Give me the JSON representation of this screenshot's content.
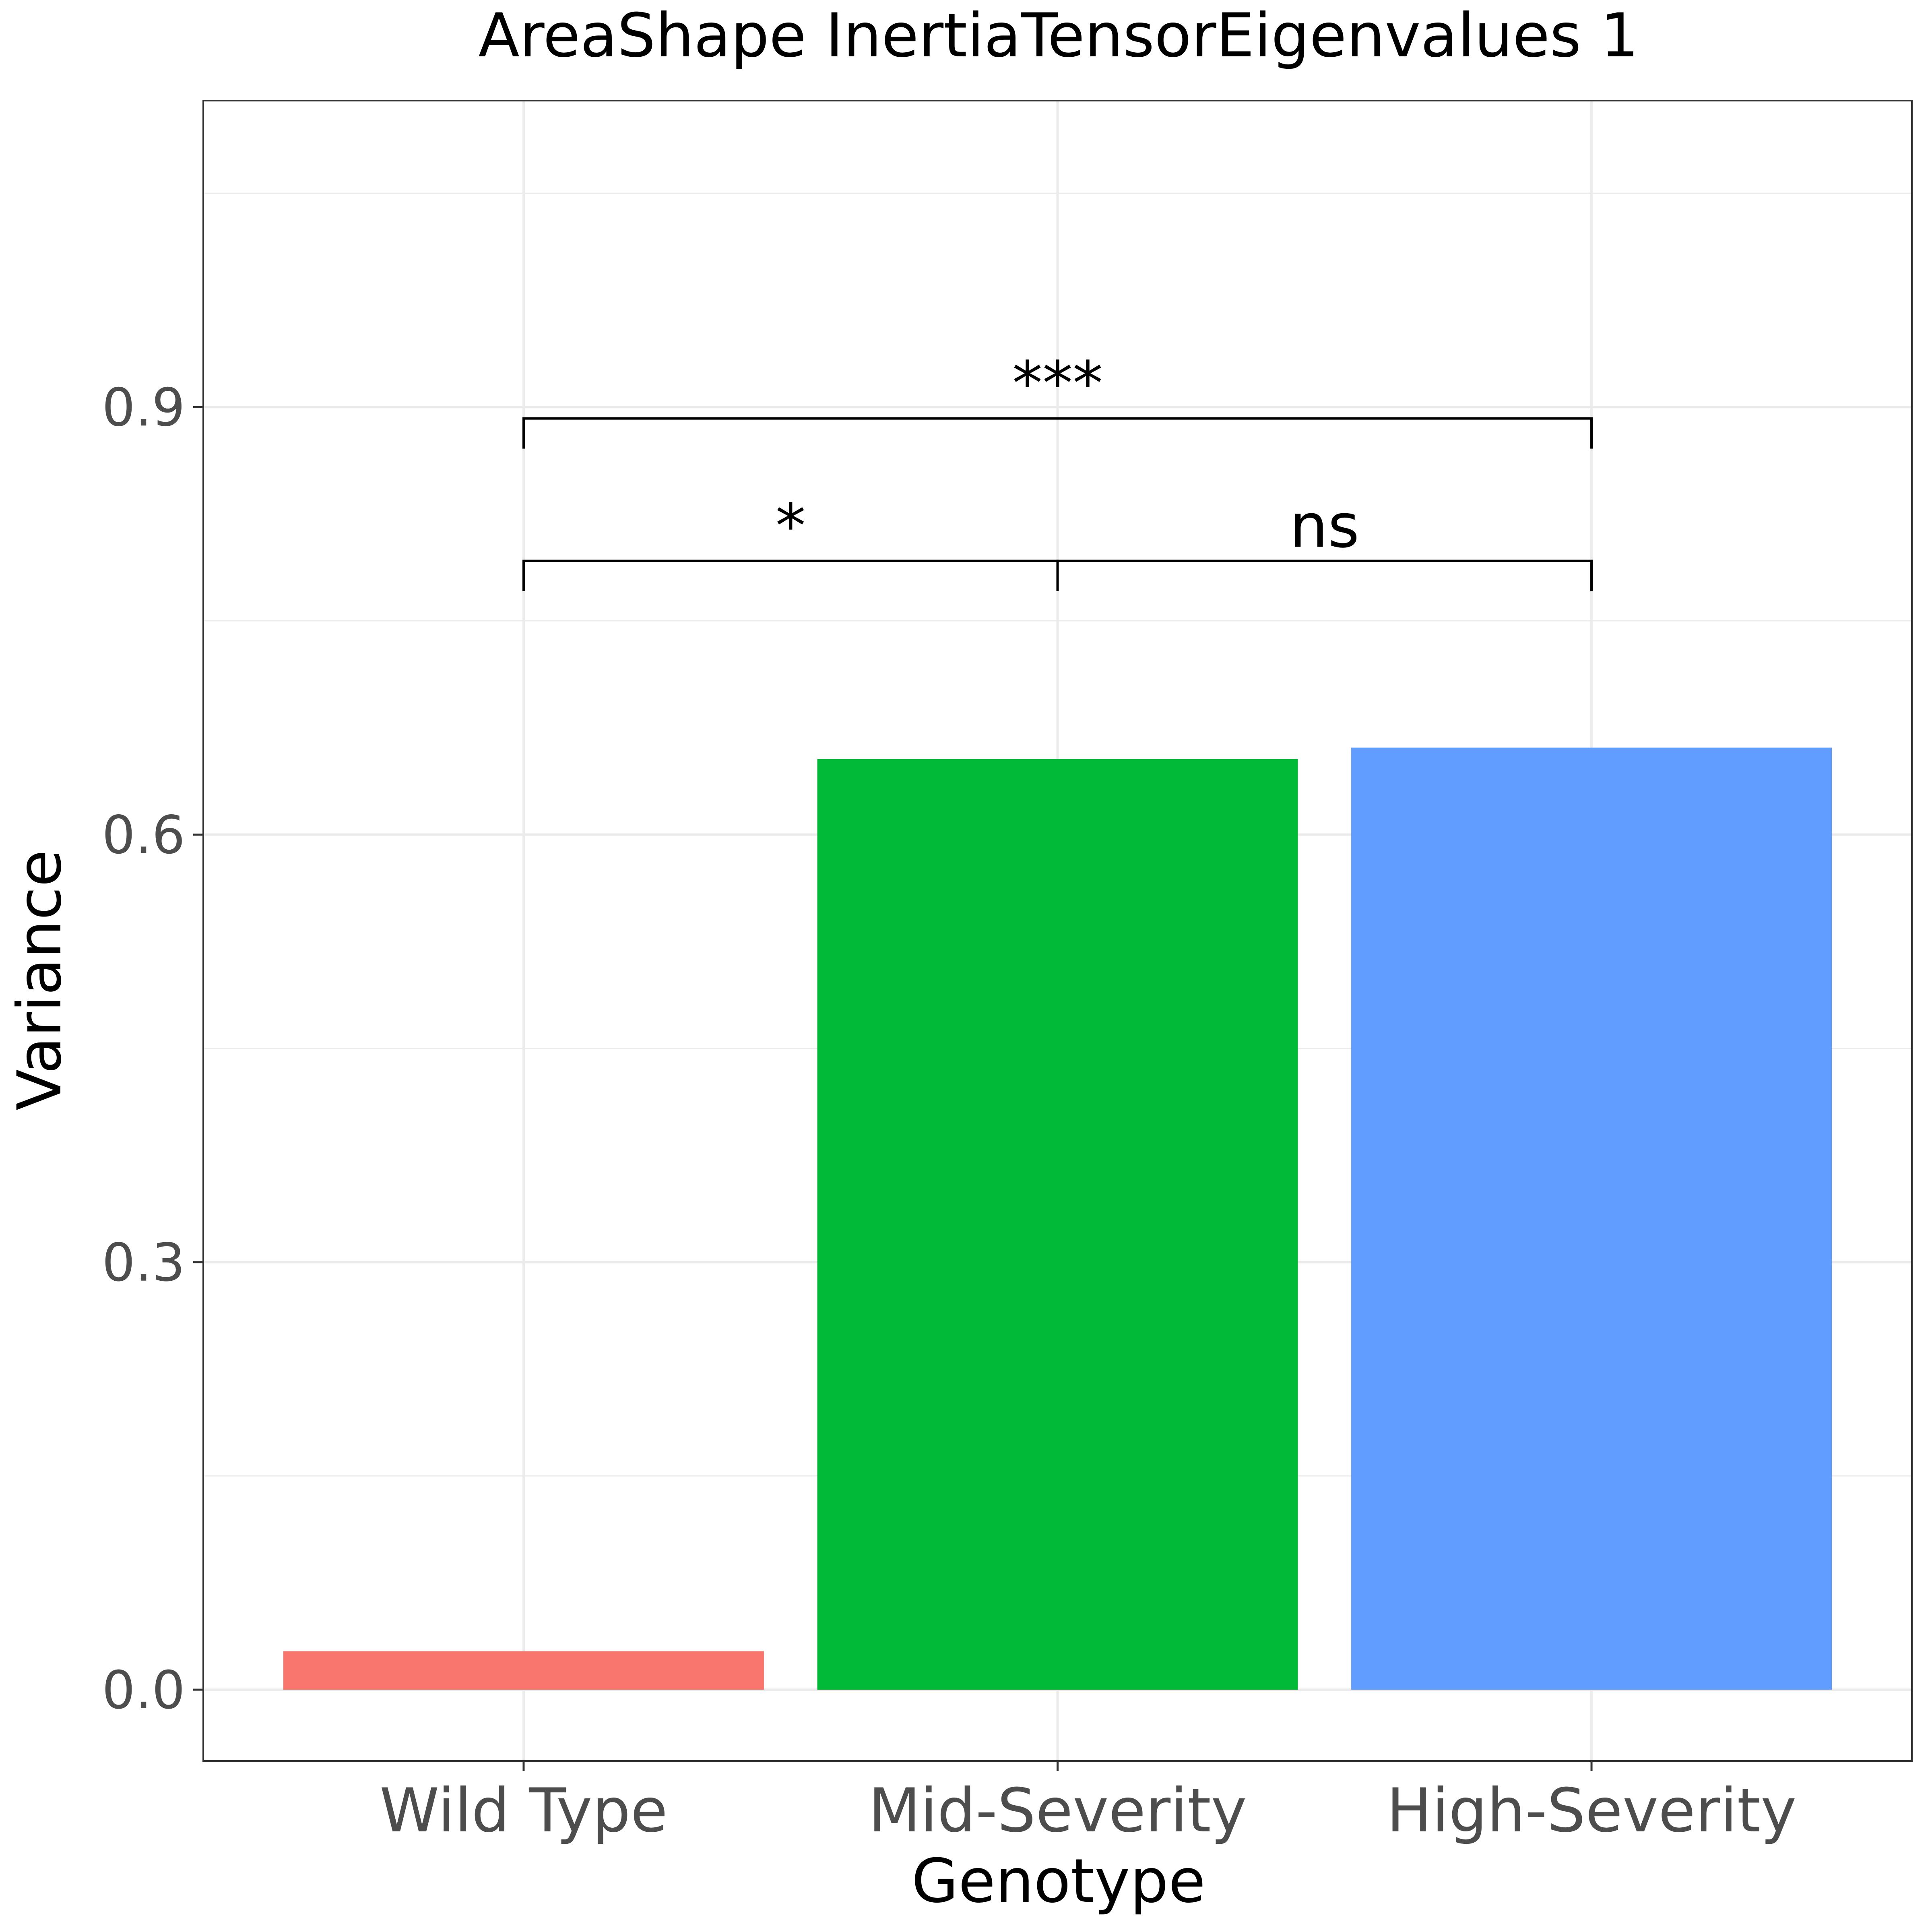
{
  "chart_data": {
    "type": "bar",
    "title": "AreaShape InertiaTensorEigenvalues 1",
    "xlabel": "Genotype",
    "ylabel": "Variance",
    "categories": [
      "Wild Type",
      "Mid-Severity",
      "High-Severity"
    ],
    "values": [
      0.027,
      0.653,
      0.661
    ],
    "colors": [
      "#F8766D",
      "#00BA38",
      "#619CFF"
    ],
    "ylim": [
      -0.05,
      1.115
    ],
    "yticks": [
      0.0,
      0.3,
      0.6,
      0.9
    ],
    "ytick_labels": [
      "0.0",
      "0.3",
      "0.6",
      "0.9"
    ],
    "grid": true,
    "legend": "none",
    "annotations": [
      {
        "from": "Wild Type",
        "to": "Mid-Severity",
        "label": "*",
        "y": 0.792
      },
      {
        "from": "Mid-Severity",
        "to": "High-Severity",
        "label": "ns",
        "y": 0.792
      },
      {
        "from": "Wild Type",
        "to": "High-Severity",
        "label": "***",
        "y": 0.892
      }
    ]
  }
}
